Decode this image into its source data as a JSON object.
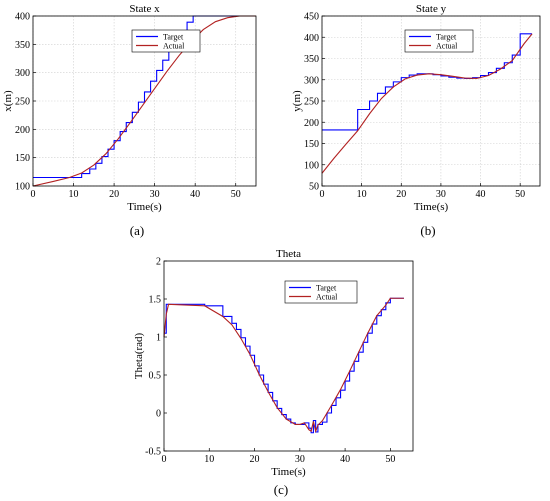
{
  "charts": [
    {
      "type": "line",
      "panel_label": "(a)",
      "title": "State x",
      "xlabel": "Time(s)",
      "ylabel": "x(m)",
      "xlim": [
        0,
        55
      ],
      "ylim": [
        100,
        400
      ],
      "xticks": [
        0,
        10,
        20,
        30,
        40,
        50
      ],
      "yticks": [
        100,
        150,
        200,
        250,
        300,
        350,
        400
      ],
      "grid": true,
      "legend": "top-center",
      "series": [
        {
          "name": "Target",
          "color": "#0000ff",
          "step": true,
          "x": [
            0,
            9,
            12,
            14,
            15.5,
            17,
            18.5,
            20,
            21.5,
            23,
            24.5,
            26,
            27.5,
            29,
            30.5,
            32,
            33.5,
            35,
            36.5,
            38,
            39.5,
            41,
            42.5,
            44,
            45.5,
            47,
            48.5,
            50,
            55
          ],
          "y": [
            115,
            115,
            122,
            130,
            140,
            152,
            165,
            180,
            196,
            212,
            230,
            248,
            266,
            285,
            304,
            322,
            340,
            358,
            374,
            389,
            400,
            400,
            400,
            400,
            400,
            400,
            400,
            400,
            400
          ]
        },
        {
          "name": "Actual",
          "color": "#b22222",
          "step": false,
          "x": [
            0,
            5,
            9,
            12,
            15,
            18,
            21,
            24,
            27,
            30,
            33,
            36,
            39,
            42,
            45,
            48,
            51,
            55
          ],
          "y": [
            100,
            108,
            115,
            123,
            137,
            157,
            183,
            212,
            242,
            272,
            302,
            330,
            355,
            376,
            390,
            397,
            400,
            400
          ]
        }
      ]
    },
    {
      "type": "line",
      "panel_label": "(b)",
      "title": "State y",
      "xlabel": "Time(s)",
      "ylabel": "y(m)",
      "xlim": [
        0,
        55
      ],
      "ylim": [
        50,
        450
      ],
      "xticks": [
        0,
        10,
        20,
        30,
        40,
        50
      ],
      "yticks": [
        50,
        100,
        150,
        200,
        250,
        300,
        350,
        400,
        450
      ],
      "grid": true,
      "legend": "top-right",
      "series": [
        {
          "name": "Target",
          "color": "#0000ff",
          "step": true,
          "x": [
            0,
            9,
            12,
            14,
            16,
            18,
            20,
            22,
            24,
            26,
            28,
            30,
            32,
            34,
            36,
            38,
            40,
            42,
            44,
            46,
            48,
            50,
            53
          ],
          "y": [
            182,
            230,
            250,
            268,
            283,
            295,
            305,
            311,
            314,
            314,
            312,
            309,
            306,
            304,
            303,
            305,
            310,
            317,
            327,
            340,
            358,
            408,
            408
          ]
        },
        {
          "name": "Actual",
          "color": "#b22222",
          "step": false,
          "x": [
            0,
            3,
            6,
            9,
            12,
            15,
            18,
            21,
            24,
            27,
            30,
            33,
            36,
            39,
            42,
            45,
            48,
            51,
            53
          ],
          "y": [
            80,
            115,
            148,
            180,
            220,
            256,
            283,
            302,
            311,
            314,
            312,
            308,
            304,
            303,
            310,
            325,
            345,
            385,
            408
          ]
        }
      ]
    },
    {
      "type": "line",
      "panel_label": "(c)",
      "title": "Theta",
      "xlabel": "Time(s)",
      "ylabel": "Theta(rad)",
      "xlim": [
        0,
        55
      ],
      "ylim": [
        -0.5,
        2
      ],
      "xticks": [
        0,
        10,
        20,
        30,
        40,
        50
      ],
      "yticks": [
        -0.5,
        0,
        0.5,
        1,
        1.5,
        2
      ],
      "grid": false,
      "legend": "top-center",
      "series": [
        {
          "name": "Target",
          "color": "#0000ff",
          "step": true,
          "x": [
            0,
            0.5,
            9,
            13,
            15,
            16,
            17,
            18,
            19,
            20,
            21,
            22,
            23,
            24,
            25,
            26,
            27,
            28,
            29,
            30,
            31,
            32,
            32.5,
            33,
            33.5,
            34,
            35,
            36,
            37,
            38,
            39,
            40,
            41,
            42,
            43,
            44,
            45,
            46,
            47,
            48,
            49,
            50,
            53
          ],
          "y": [
            1.05,
            1.43,
            1.41,
            1.27,
            1.18,
            1.1,
            0.99,
            0.88,
            0.76,
            0.62,
            0.5,
            0.38,
            0.27,
            0.16,
            0.06,
            -0.02,
            -0.08,
            -0.13,
            -0.15,
            -0.15,
            -0.13,
            -0.2,
            -0.26,
            -0.1,
            -0.25,
            -0.15,
            -0.12,
            0.0,
            0.1,
            0.2,
            0.3,
            0.42,
            0.55,
            0.68,
            0.8,
            0.93,
            1.05,
            1.17,
            1.28,
            1.36,
            1.45,
            1.51,
            1.51
          ]
        },
        {
          "name": "Actual",
          "color": "#b22222",
          "step": false,
          "x": [
            0,
            0.5,
            1,
            9,
            13,
            15,
            17,
            19,
            21,
            23,
            25,
            27,
            29,
            30,
            31,
            32,
            32.5,
            33,
            33.5,
            34,
            35,
            37,
            39,
            41,
            43,
            45,
            47,
            49,
            50,
            53
          ],
          "y": [
            1.0,
            1.3,
            1.43,
            1.41,
            1.27,
            1.16,
            0.98,
            0.77,
            0.51,
            0.28,
            0.07,
            -0.08,
            -0.15,
            -0.15,
            -0.13,
            -0.22,
            -0.24,
            -0.11,
            -0.24,
            -0.16,
            -0.1,
            0.1,
            0.31,
            0.55,
            0.8,
            1.05,
            1.28,
            1.42,
            1.51,
            1.51
          ]
        }
      ]
    }
  ]
}
